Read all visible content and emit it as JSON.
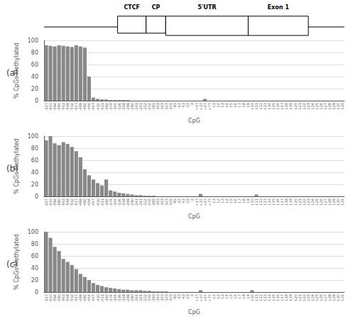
{
  "chart_data": [
    {
      "type": "bar",
      "title": "(a)",
      "annotations": [
        "CTCF",
        "CP",
        "5'UTR",
        "Exon 1"
      ],
      "xlabel": "CpG",
      "ylabel": "% CpGs Methylated",
      "categories": [
        "-627",
        "-610",
        "-594",
        "-580",
        "-563",
        "-548",
        "-532",
        "-517",
        "-499",
        "-482",
        "-464",
        "-447",
        "-430",
        "-411",
        "-392",
        "-374",
        "-355",
        "-336",
        "-318",
        "-299",
        "-280",
        "-261",
        "-241",
        "-222",
        "-202",
        "-183",
        "-163",
        "-143",
        "-123",
        "-103",
        "-83",
        "-63",
        "-43",
        "-23",
        "-3",
        "+17",
        "+37",
        "+57",
        "+77",
        "L1",
        "L2",
        "L3",
        "L4",
        "L5",
        "L6",
        "L7",
        "L8",
        "L9",
        "L10",
        "L11",
        "L12",
        "L13",
        "L14",
        "L15",
        "L16",
        "L17",
        "L18",
        "L19",
        "L20",
        "L21",
        "L22",
        "L23",
        "L24",
        "L25",
        "L26",
        "L27",
        "L28",
        "L29",
        "L30",
        "L31"
      ],
      "values": [
        92,
        91,
        90,
        92,
        91,
        90,
        89,
        92,
        90,
        88,
        40,
        5,
        3,
        2,
        2,
        1,
        1,
        1,
        1,
        1,
        0,
        0,
        0,
        0,
        0,
        0,
        0,
        0,
        0,
        0,
        0,
        0,
        0,
        0,
        0,
        0,
        0,
        3,
        0,
        0,
        0,
        0,
        0,
        0,
        0,
        0,
        0,
        0,
        0,
        0,
        0,
        0,
        0,
        0,
        0,
        0,
        0,
        0,
        0,
        0,
        0,
        0,
        0,
        0,
        0,
        0,
        0,
        0,
        0,
        0
      ],
      "color": "#888888",
      "ylim": [
        0,
        100
      ],
      "yticks": [
        0,
        20,
        40,
        60,
        80,
        100
      ],
      "grid": true
    },
    {
      "type": "bar",
      "title": "(b)",
      "xlabel": "CpG",
      "ylabel": "% CpGs Methylated",
      "categories": [
        "-627",
        "-610",
        "-594",
        "-580",
        "-563",
        "-548",
        "-532",
        "-517",
        "-499",
        "-482",
        "-464",
        "-447",
        "-430",
        "-411",
        "-392",
        "-374",
        "-355",
        "-336",
        "-318",
        "-299",
        "-280",
        "-261",
        "-241",
        "-222",
        "-202",
        "-183",
        "-163",
        "-143",
        "-123",
        "-103",
        "-83",
        "-63",
        "-43",
        "-23",
        "-3",
        "+17",
        "+37",
        "+57",
        "+77",
        "L1",
        "L2",
        "L3",
        "L4",
        "L5",
        "L6",
        "L7",
        "L8",
        "L9",
        "L10",
        "L11",
        "L12",
        "L13",
        "L14",
        "L15",
        "L16",
        "L17",
        "L18",
        "L19",
        "L20",
        "L21",
        "L22",
        "L23",
        "L24",
        "L25",
        "L26",
        "L27",
        "L28",
        "L29",
        "L30",
        "L31"
      ],
      "values": [
        93,
        100,
        88,
        85,
        90,
        87,
        82,
        75,
        65,
        45,
        35,
        28,
        22,
        18,
        28,
        10,
        8,
        6,
        5,
        4,
        3,
        2,
        2,
        1,
        1,
        1,
        0,
        0,
        0,
        0,
        0,
        0,
        0,
        0,
        0,
        0,
        4,
        0,
        0,
        0,
        0,
        0,
        0,
        0,
        0,
        0,
        0,
        0,
        0,
        3,
        0,
        0,
        0,
        0,
        0,
        0,
        0,
        0,
        0,
        0,
        0,
        0,
        0,
        0,
        0,
        0,
        0,
        0,
        0,
        0
      ],
      "color": "#888888",
      "ylim": [
        0,
        100
      ],
      "yticks": [
        0,
        20,
        40,
        60,
        80,
        100
      ],
      "grid": true
    },
    {
      "type": "bar",
      "title": "(c)",
      "xlabel": "CpG",
      "ylabel": "% CpGs Methylated",
      "categories": [
        "-627",
        "-610",
        "-594",
        "-580",
        "-563",
        "-548",
        "-532",
        "-517",
        "-499",
        "-482",
        "-464",
        "-447",
        "-430",
        "-411",
        "-392",
        "-374",
        "-355",
        "-336",
        "-318",
        "-299",
        "-280",
        "-261",
        "-241",
        "-222",
        "-202",
        "-183",
        "-163",
        "-143",
        "-123",
        "-103",
        "-83",
        "-63",
        "-43",
        "-23",
        "-3",
        "+17",
        "+37",
        "+57",
        "+77",
        "L1",
        "L2",
        "L3",
        "L4",
        "L5",
        "L6",
        "L7",
        "L8",
        "L9",
        "L10",
        "L11",
        "L12",
        "L13",
        "L14",
        "L15",
        "L16",
        "L17",
        "L18",
        "L19",
        "L20",
        "L21",
        "L22",
        "L23",
        "L24",
        "L25",
        "L26",
        "L27",
        "L28",
        "L29",
        "L30",
        "L31"
      ],
      "values": [
        100,
        90,
        75,
        68,
        55,
        50,
        45,
        38,
        30,
        25,
        20,
        15,
        12,
        10,
        8,
        7,
        6,
        5,
        4,
        4,
        3,
        3,
        3,
        2,
        2,
        1,
        1,
        1,
        1,
        0,
        0,
        0,
        0,
        0,
        0,
        0,
        3,
        0,
        0,
        0,
        0,
        0,
        0,
        0,
        0,
        0,
        0,
        0,
        3,
        0,
        0,
        0,
        0,
        0,
        0,
        0,
        0,
        0,
        0,
        0,
        0,
        0,
        0,
        0,
        0,
        0,
        0,
        0,
        0,
        0
      ],
      "color": "#888888",
      "ylim": [
        0,
        100
      ],
      "yticks": [
        0,
        20,
        40,
        60,
        80,
        100
      ],
      "grid": true
    }
  ]
}
